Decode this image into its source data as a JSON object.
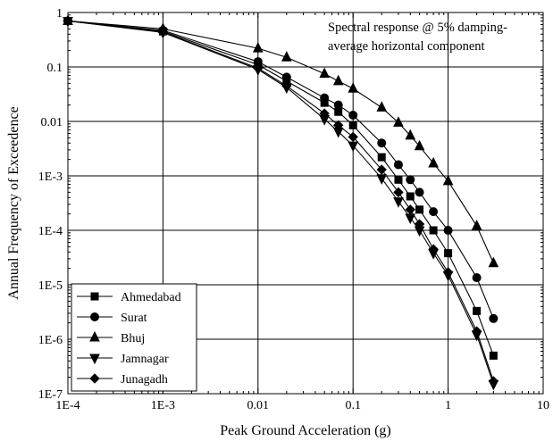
{
  "chart_data": {
    "type": "line",
    "xscale": "log",
    "yscale": "log",
    "xlim": [
      0.0001,
      10
    ],
    "ylim": [
      1e-07,
      1
    ],
    "grid": true,
    "xlabel": "Peak Ground Acceleration (g)",
    "ylabel": "Annual Frequency of Exceedence",
    "x_tick_values": [
      0.0001,
      0.001,
      0.01,
      0.1,
      1,
      10
    ],
    "x_tick_labels": [
      "1E-4",
      "1E-3",
      "0.01",
      "0.1",
      "1",
      "10"
    ],
    "y_tick_values": [
      1e-07,
      1e-06,
      1e-05,
      0.0001,
      0.001,
      0.01,
      0.1,
      1
    ],
    "y_tick_labels": [
      "1E-7",
      "1E-6",
      "1E-5",
      "1E-4",
      "1E-3",
      "0.01",
      "0.1",
      "1"
    ],
    "annotation": [
      "Spectral response @ 5% damping-",
      "average horizontal component"
    ],
    "legend_position": "bottom-left",
    "x": [
      0.0001,
      0.001,
      0.01,
      0.02,
      0.05,
      0.07,
      0.1,
      0.2,
      0.3,
      0.4,
      0.5,
      0.7,
      1,
      2,
      3
    ],
    "series": [
      {
        "name": "Ahmedabad",
        "marker": "square",
        "values": [
          0.7,
          0.45,
          0.11,
          0.055,
          0.022,
          0.015,
          0.0085,
          0.0022,
          0.00085,
          0.00042,
          0.00024,
          0.0001,
          3.8e-05,
          3.3e-06,
          5e-07
        ]
      },
      {
        "name": "Surat",
        "marker": "circle",
        "values": [
          0.7,
          0.47,
          0.125,
          0.065,
          0.027,
          0.02,
          0.013,
          0.004,
          0.0016,
          0.00085,
          0.0005,
          0.00022,
          0.0001,
          1.35e-05,
          2.4e-06
        ]
      },
      {
        "name": "Bhuj",
        "marker": "triangle-up",
        "values": [
          0.7,
          0.5,
          0.22,
          0.15,
          0.075,
          0.055,
          0.04,
          0.018,
          0.0095,
          0.0055,
          0.0035,
          0.0017,
          0.0008,
          0.00012,
          2.5e-05
        ]
      },
      {
        "name": "Jamnagar",
        "marker": "triangle-down",
        "values": [
          0.7,
          0.43,
          0.09,
          0.042,
          0.011,
          0.0065,
          0.0036,
          0.0009,
          0.00034,
          0.00017,
          0.0001,
          3.8e-05,
          1.5e-05,
          1.2e-06,
          1.5e-07
        ]
      },
      {
        "name": "Junagadh",
        "marker": "diamond",
        "values": [
          0.7,
          0.44,
          0.095,
          0.045,
          0.014,
          0.0085,
          0.0052,
          0.0013,
          0.0005,
          0.00024,
          0.00013,
          4.5e-05,
          1.7e-05,
          1.4e-06,
          1.7e-07
        ]
      }
    ]
  }
}
